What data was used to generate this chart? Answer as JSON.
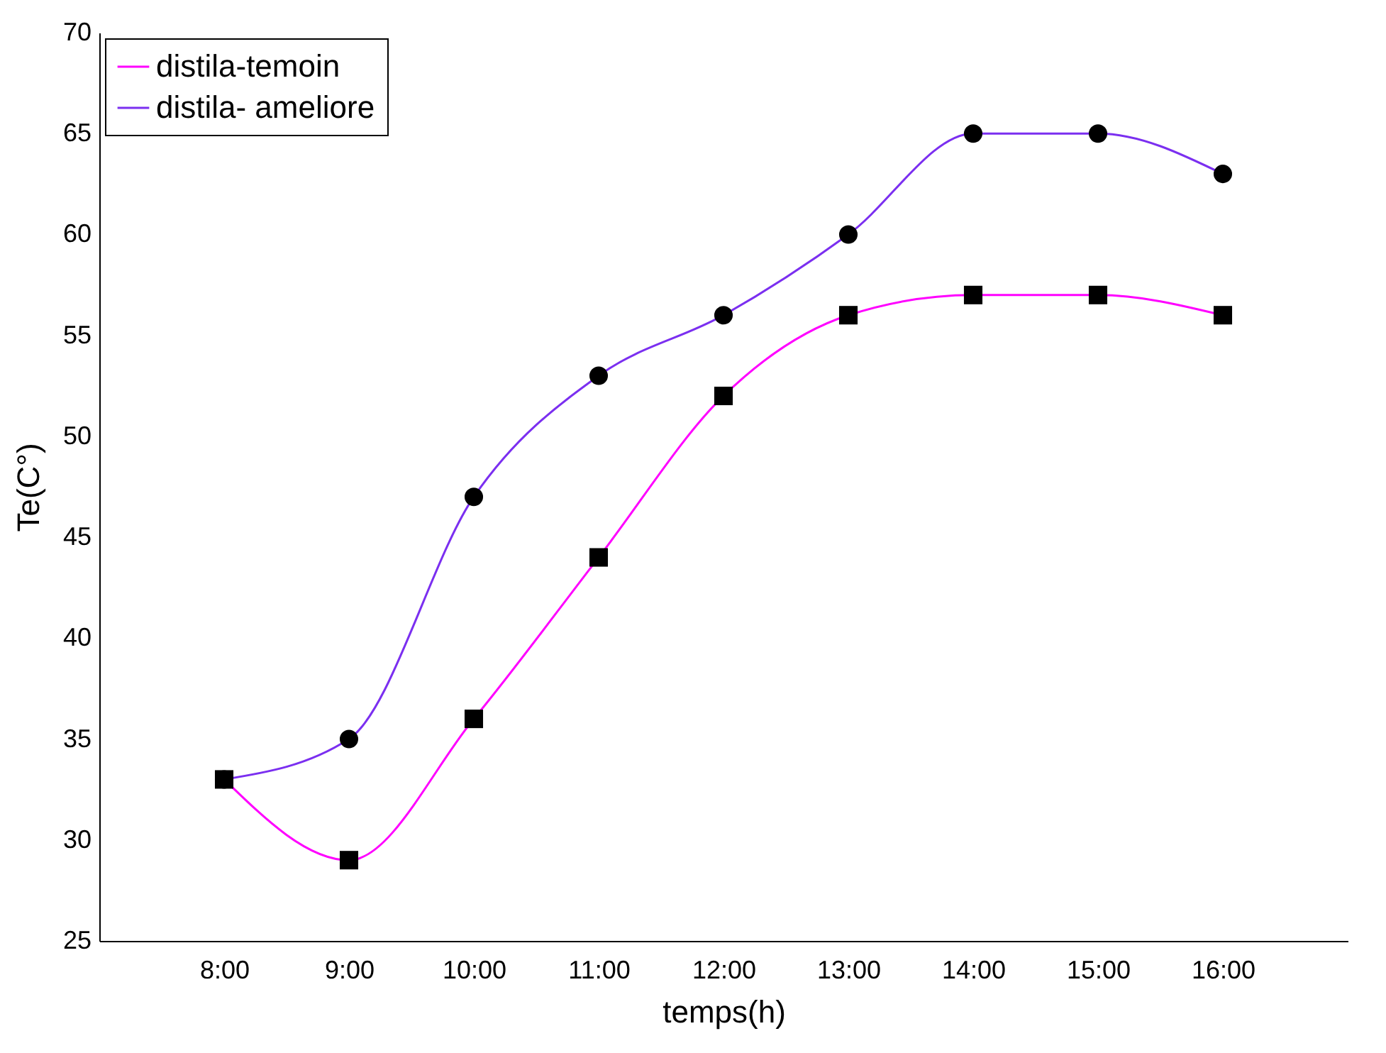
{
  "chart_data": {
    "type": "line",
    "xlabel": "temps(h)",
    "ylabel": "Te(C°)",
    "categories": [
      "8:00",
      "9:00",
      "10:00",
      "11:00",
      "12:00",
      "13:00",
      "14:00",
      "15:00",
      "16:00"
    ],
    "ylim": [
      25,
      70
    ],
    "yticks": [
      25,
      30,
      35,
      40,
      45,
      50,
      55,
      60,
      65,
      70
    ],
    "grid": false,
    "legend": "top left",
    "line_style": "solid",
    "series": [
      {
        "name": "distila-temoin",
        "color": "#ff00ff",
        "marker": "square",
        "values": [
          33,
          29,
          36,
          44,
          52,
          56,
          57,
          57,
          56
        ]
      },
      {
        "name": "distila- ameliore",
        "color": "#7b2ff0",
        "marker": "circle",
        "values": [
          33,
          35,
          47,
          53,
          56,
          60,
          65,
          65,
          63
        ]
      }
    ]
  }
}
